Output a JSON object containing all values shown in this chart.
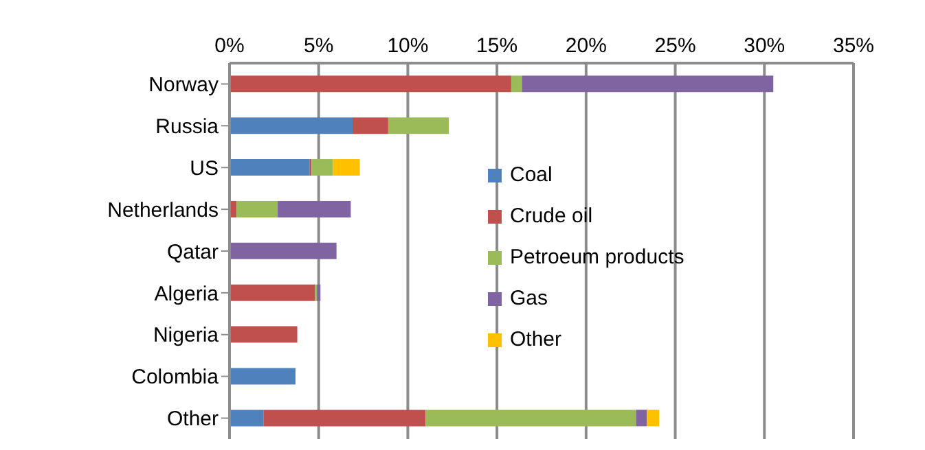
{
  "chart_data": {
    "type": "bar",
    "orientation": "horizontal",
    "stacked": true,
    "categories": [
      "Norway",
      "Russia",
      "US",
      "Netherlands",
      "Qatar",
      "Algeria",
      "Nigeria",
      "Colombia",
      "Other"
    ],
    "series": [
      {
        "name": "Coal",
        "color": "#4f81bd",
        "values": [
          0,
          6.9,
          4.5,
          0,
          0,
          0,
          0,
          3.7,
          1.9
        ]
      },
      {
        "name": "Crude oil",
        "color": "#c0504d",
        "values": [
          15.8,
          2.0,
          0.1,
          0.4,
          0,
          4.8,
          3.8,
          0,
          9.1
        ]
      },
      {
        "name": "Petroeum products",
        "color": "#9bbb59",
        "values": [
          0.6,
          3.4,
          1.2,
          2.3,
          0,
          0.1,
          0,
          0,
          11.8
        ]
      },
      {
        "name": "Gas",
        "color": "#8064a2",
        "values": [
          14.1,
          0,
          0,
          4.1,
          6.0,
          0.2,
          0,
          0,
          0.6
        ]
      },
      {
        "name": "Other",
        "color": "#ffc000",
        "values": [
          0,
          0,
          1.5,
          0,
          0,
          0,
          0,
          0,
          0.7
        ]
      }
    ],
    "xlim": [
      0,
      35
    ],
    "xticks": [
      {
        "value": 0,
        "label": "0%"
      },
      {
        "value": 5,
        "label": "5%"
      },
      {
        "value": 10,
        "label": "10%"
      },
      {
        "value": 15,
        "label": "15%"
      },
      {
        "value": 20,
        "label": "20%"
      },
      {
        "value": 25,
        "label": "25%"
      },
      {
        "value": 30,
        "label": "30%"
      },
      {
        "value": 35,
        "label": "35%"
      }
    ],
    "grid": "x",
    "legend": "right"
  }
}
